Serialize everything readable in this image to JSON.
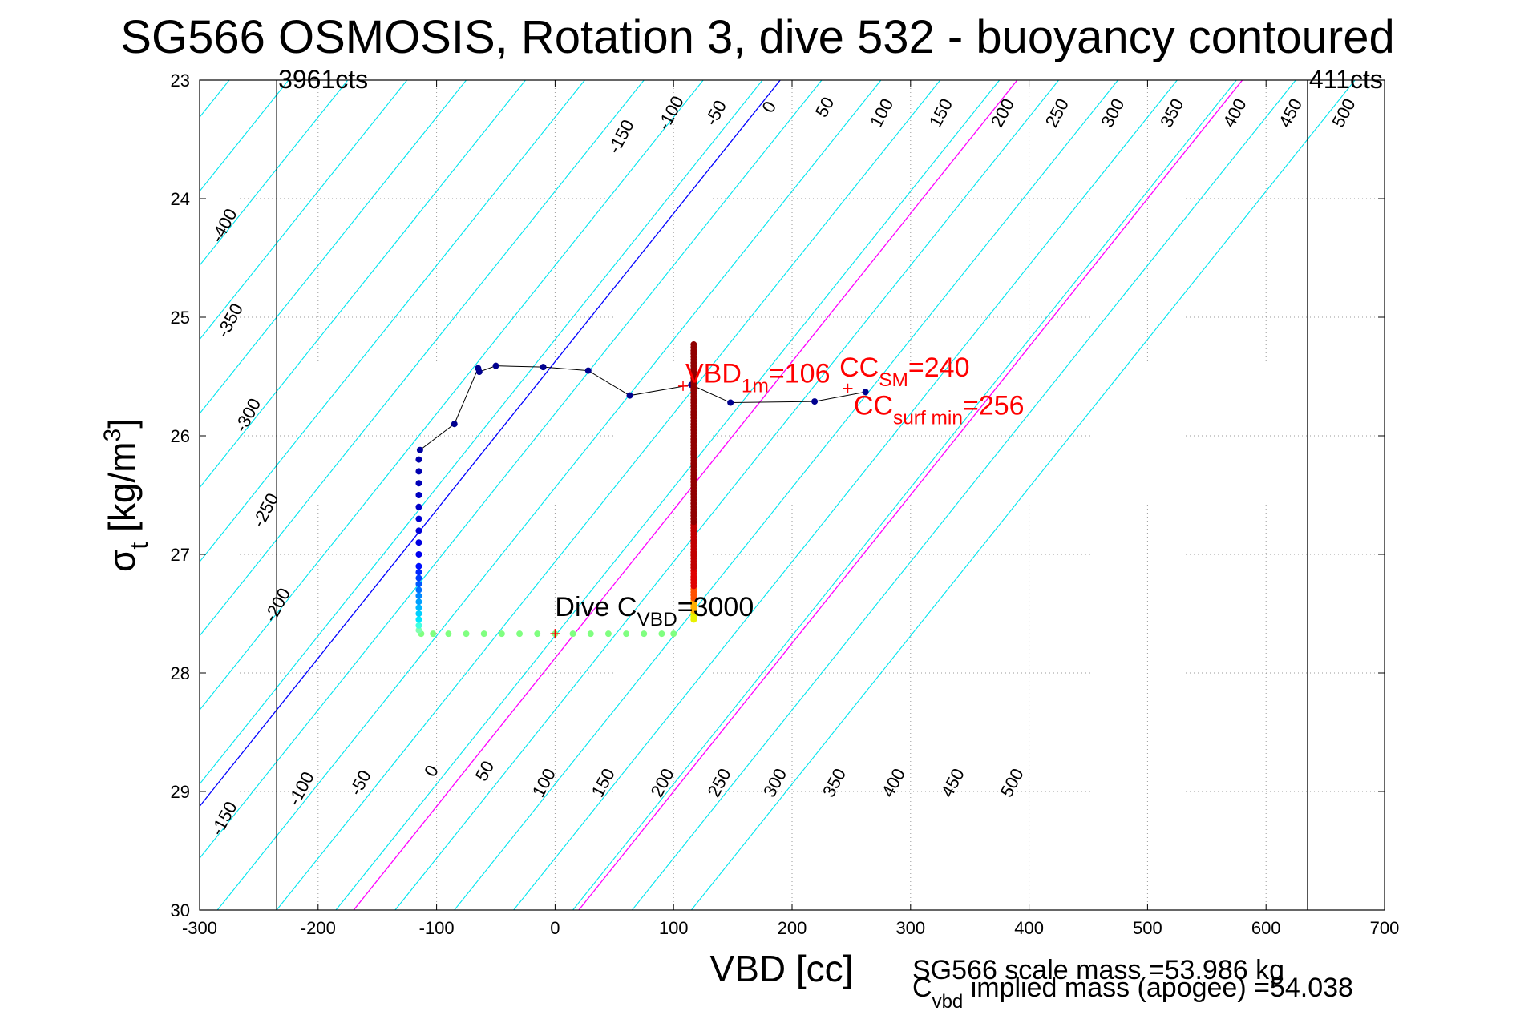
{
  "chart_data": {
    "type": "scatter",
    "title": "SG566 OSMOSIS, Rotation 3, dive 532 - buoyancy contoured",
    "xlabel": "VBD [cc]",
    "ylabel": {
      "base": "σ",
      "sub": "t",
      "rest": " [kg/m",
      "sup": "3",
      "close": "]"
    },
    "xlim": [
      -300,
      700
    ],
    "ylim": [
      23,
      30
    ],
    "y_reversed": true,
    "grid": "dotted",
    "x_ticks": [
      -300,
      -200,
      -100,
      0,
      100,
      200,
      300,
      400,
      500,
      600,
      700
    ],
    "y_ticks": [
      23,
      24,
      25,
      26,
      27,
      28,
      29,
      30
    ],
    "x_tick_labels": [
      "-300",
      "-200",
      "-100",
      "0",
      "100",
      "200",
      "300",
      "400",
      "500",
      "600",
      "700"
    ],
    "y_tick_labels": [
      "23",
      "24",
      "25",
      "26",
      "27",
      "28",
      "29",
      "30"
    ],
    "contour_slope_cc_per_sigma": 80,
    "contours": [
      {
        "level": -400,
        "x_at_top": -425,
        "color": "#00e5ee",
        "label": "-400"
      },
      {
        "level": -350,
        "x_at_top": -375,
        "color": "#00e5ee",
        "label": "-350"
      },
      {
        "level": -300,
        "x_at_top": -325,
        "color": "#00e5ee",
        "label": "-300"
      },
      {
        "level": -250,
        "x_at_top": -275,
        "color": "#00e5ee",
        "label": "-250"
      },
      {
        "level": -200,
        "x_at_top": -225,
        "color": "#00e5ee",
        "label": "-200"
      },
      {
        "level": -150,
        "x_at_top": -175,
        "color": "#00e5ee",
        "label": "-150"
      },
      {
        "level": -100,
        "x_at_top": -125,
        "color": "#00e5ee",
        "label": "-100"
      },
      {
        "level": -50,
        "x_at_top": -75,
        "color": "#00e5ee",
        "label": "-50"
      },
      {
        "level": 0,
        "x_at_top": -25,
        "color": "#00e5ee",
        "label": "0"
      },
      {
        "level": 50,
        "x_at_top": 25,
        "color": "#00e5ee",
        "label": "50"
      },
      {
        "level": 100,
        "x_at_top": 75,
        "color": "#00e5ee",
        "label": "100"
      },
      {
        "level": 150,
        "x_at_top": 125,
        "color": "#00e5ee",
        "label": "150"
      },
      {
        "level": 200,
        "x_at_top": 175,
        "color": "#00e5ee",
        "label": "200"
      },
      {
        "level": 250,
        "x_at_top": 225,
        "color": "#00e5ee",
        "label": "250"
      },
      {
        "level": 300,
        "x_at_top": 275,
        "color": "#00e5ee",
        "label": "300"
      },
      {
        "level": 350,
        "x_at_top": 325,
        "color": "#00e5ee",
        "label": "350"
      },
      {
        "level": 400,
        "x_at_top": 375,
        "color": "#00e5ee",
        "label": "400"
      },
      {
        "level": 450,
        "x_at_top": 425,
        "color": "#00e5ee",
        "label": "450"
      },
      {
        "level": 500,
        "x_at_top": 475,
        "color": "#00e5ee",
        "label": "500"
      },
      {
        "level": 550,
        "x_at_top": 525,
        "color": "#00e5ee",
        "label": ""
      },
      {
        "level": 600,
        "x_at_top": 575,
        "color": "#00e5ee",
        "label": ""
      },
      {
        "level": 650,
        "x_at_top": 625,
        "color": "#00e5ee",
        "label": ""
      },
      {
        "level": 700,
        "x_at_top": 675,
        "color": "#00e5ee",
        "label": ""
      }
    ],
    "highlight_lines": [
      {
        "x_at_top": 190,
        "color": "#0000ff"
      },
      {
        "x_at_top": 390,
        "color": "#ff00ff"
      },
      {
        "x_at_top": 580,
        "color": "#ff00ff"
      }
    ],
    "vertical_lines": [
      {
        "x": -235,
        "label": "3961cts"
      },
      {
        "x": 635,
        "label": "411cts"
      }
    ],
    "top_labels": [
      {
        "x": 60,
        "sigma": 23.5,
        "text": "-150"
      },
      {
        "x": 102,
        "sigma": 23.3,
        "text": "-100"
      },
      {
        "x": 140,
        "sigma": 23.3,
        "text": "-50"
      },
      {
        "x": 185,
        "sigma": 23.25,
        "text": "0"
      },
      {
        "x": 232,
        "sigma": 23.25,
        "text": "50"
      },
      {
        "x": 280,
        "sigma": 23.3,
        "text": "100"
      },
      {
        "x": 330,
        "sigma": 23.3,
        "text": "150"
      },
      {
        "x": 382,
        "sigma": 23.3,
        "text": "200"
      },
      {
        "x": 428,
        "sigma": 23.3,
        "text": "250"
      },
      {
        "x": 475,
        "sigma": 23.3,
        "text": "300"
      },
      {
        "x": 525,
        "sigma": 23.3,
        "text": "350"
      },
      {
        "x": 578,
        "sigma": 23.3,
        "text": "400"
      },
      {
        "x": 625,
        "sigma": 23.3,
        "text": "450"
      },
      {
        "x": 670,
        "sigma": 23.3,
        "text": "500"
      }
    ],
    "left_labels": [
      {
        "x": -275,
        "sigma": 24.25,
        "text": "-400"
      },
      {
        "x": -270,
        "sigma": 25.05,
        "text": "-350"
      },
      {
        "x": -255,
        "sigma": 25.85,
        "text": "-300"
      },
      {
        "x": -240,
        "sigma": 26.65,
        "text": "-250"
      },
      {
        "x": -230,
        "sigma": 27.45,
        "text": "-200"
      }
    ],
    "bottom_labels": [
      {
        "x": -275,
        "sigma": 29.25,
        "text": "-150"
      },
      {
        "x": -210,
        "sigma": 29.0,
        "text": "-100"
      },
      {
        "x": -160,
        "sigma": 28.95,
        "text": "-50"
      },
      {
        "x": -100,
        "sigma": 28.85,
        "text": "0"
      },
      {
        "x": -55,
        "sigma": 28.85,
        "text": "50"
      },
      {
        "x": -5,
        "sigma": 28.95,
        "text": "100"
      },
      {
        "x": 45,
        "sigma": 28.95,
        "text": "150"
      },
      {
        "x": 95,
        "sigma": 28.95,
        "text": "200"
      },
      {
        "x": 143,
        "sigma": 28.95,
        "text": "250"
      },
      {
        "x": 190,
        "sigma": 28.95,
        "text": "300"
      },
      {
        "x": 240,
        "sigma": 28.95,
        "text": "350"
      },
      {
        "x": 290,
        "sigma": 28.95,
        "text": "400"
      },
      {
        "x": 340,
        "sigma": 28.95,
        "text": "450"
      },
      {
        "x": 390,
        "sigma": 28.95,
        "text": "500"
      }
    ],
    "dive_points": [
      {
        "x": -113,
        "sigma": 27.67,
        "c": "#80ff80"
      },
      {
        "x": -103,
        "sigma": 27.67,
        "c": "#80ff80"
      },
      {
        "x": -90,
        "sigma": 27.67,
        "c": "#80ff80"
      },
      {
        "x": -75,
        "sigma": 27.67,
        "c": "#80ff80"
      },
      {
        "x": -60,
        "sigma": 27.67,
        "c": "#80ff80"
      },
      {
        "x": -45,
        "sigma": 27.67,
        "c": "#80ff80"
      },
      {
        "x": -30,
        "sigma": 27.67,
        "c": "#80ff80"
      },
      {
        "x": -15,
        "sigma": 27.67,
        "c": "#80ff80"
      },
      {
        "x": 0,
        "sigma": 27.67,
        "c": "#80ff80"
      },
      {
        "x": 15,
        "sigma": 27.67,
        "c": "#80ff80"
      },
      {
        "x": 30,
        "sigma": 27.67,
        "c": "#80ff80"
      },
      {
        "x": 45,
        "sigma": 27.67,
        "c": "#80ff80"
      },
      {
        "x": 60,
        "sigma": 27.67,
        "c": "#80ff80"
      },
      {
        "x": 75,
        "sigma": 27.67,
        "c": "#80ff80"
      },
      {
        "x": 90,
        "sigma": 27.67,
        "c": "#80ff80"
      },
      {
        "x": 100,
        "sigma": 27.67,
        "c": "#80ff80"
      },
      {
        "x": -115,
        "sigma": 27.64,
        "c": "#80ffb0"
      },
      {
        "x": -115,
        "sigma": 27.6,
        "c": "#40ffe0"
      },
      {
        "x": -115,
        "sigma": 27.55,
        "c": "#00e8ff"
      },
      {
        "x": -115,
        "sigma": 27.5,
        "c": "#00d0ff"
      },
      {
        "x": -115,
        "sigma": 27.45,
        "c": "#00b8ff"
      },
      {
        "x": -115,
        "sigma": 27.4,
        "c": "#00a0ff"
      },
      {
        "x": -115,
        "sigma": 27.35,
        "c": "#0088ff"
      },
      {
        "x": -115,
        "sigma": 27.3,
        "c": "#0070ff"
      },
      {
        "x": -115,
        "sigma": 27.25,
        "c": "#0058ff"
      },
      {
        "x": -115,
        "sigma": 27.2,
        "c": "#0040ff"
      },
      {
        "x": -115,
        "sigma": 27.15,
        "c": "#0028ff"
      },
      {
        "x": -115,
        "sigma": 27.1,
        "c": "#0010ff"
      },
      {
        "x": -115,
        "sigma": 27.0,
        "c": "#0000ee"
      },
      {
        "x": -115,
        "sigma": 26.9,
        "c": "#0000e0"
      },
      {
        "x": -115,
        "sigma": 26.8,
        "c": "#0000d8"
      },
      {
        "x": -115,
        "sigma": 26.7,
        "c": "#0000d0"
      },
      {
        "x": -115,
        "sigma": 26.6,
        "c": "#0000c8"
      },
      {
        "x": -115,
        "sigma": 26.5,
        "c": "#0000c0"
      },
      {
        "x": -115,
        "sigma": 26.4,
        "c": "#0000b8"
      },
      {
        "x": -115,
        "sigma": 26.3,
        "c": "#0000b0"
      },
      {
        "x": -115,
        "sigma": 26.2,
        "c": "#0000aa"
      },
      {
        "x": -114,
        "sigma": 26.12,
        "c": "#0000a0"
      },
      {
        "x": -85,
        "sigma": 25.9,
        "c": "#00008f"
      },
      {
        "x": -65,
        "sigma": 25.43,
        "c": "#00008f"
      },
      {
        "x": -64,
        "sigma": 25.46,
        "c": "#00008f"
      },
      {
        "x": -50,
        "sigma": 25.41,
        "c": "#00008f"
      },
      {
        "x": -10,
        "sigma": 25.42,
        "c": "#00008f"
      },
      {
        "x": 28,
        "sigma": 25.45,
        "c": "#00008f"
      },
      {
        "x": 63,
        "sigma": 25.66,
        "c": "#00008f"
      },
      {
        "x": 115,
        "sigma": 25.57,
        "c": "#00008f"
      },
      {
        "x": 148,
        "sigma": 25.72,
        "c": "#00008f"
      },
      {
        "x": 219,
        "sigma": 25.71,
        "c": "#00008f"
      },
      {
        "x": 262,
        "sigma": 25.63,
        "c": "#00008f"
      }
    ],
    "climb_column": {
      "x": 117,
      "sigma_start": 27.55,
      "sigma_end": 25.23
    },
    "annotations": [
      {
        "x": 0,
        "sigma": 27.52,
        "color": "#000",
        "base": "Dive C",
        "sub": "VBD",
        "rest": "=3000",
        "size": 34
      },
      {
        "x": 110,
        "sigma": 25.55,
        "color": "#ff0000",
        "base": "VBD",
        "sub": "1m",
        "rest": "=106",
        "size": 34
      },
      {
        "x": 240,
        "sigma": 25.5,
        "color": "#ff0000",
        "base": "CC",
        "sub": "SM",
        "rest": "=240",
        "size": 34
      },
      {
        "x": 252,
        "sigma": 25.82,
        "color": "#ff0000",
        "base": "CC",
        "sub": "surf min",
        "rest": "=256",
        "size": 34
      }
    ],
    "footer_lines": [
      {
        "text": "SG566 scale mass =53.986 kg"
      },
      {
        "base": "C",
        "sub": "vbd",
        "rest": " implied mass (apogee) =54.038"
      }
    ]
  }
}
